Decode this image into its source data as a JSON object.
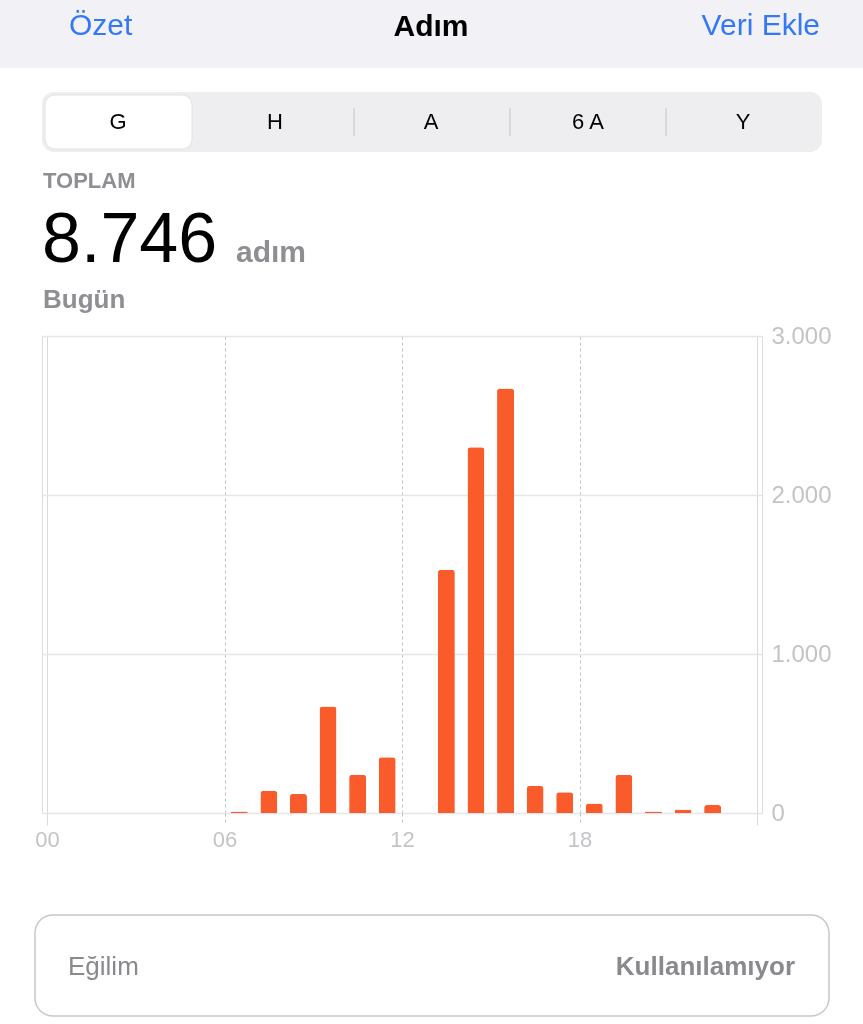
{
  "chart_data": {
    "type": "bar",
    "title": "Adım",
    "annotations": [
      "Özet",
      "Veri Ekle",
      "G",
      "H",
      "A",
      "6 A",
      "Y",
      "TOPLAM",
      "8.746",
      "adım",
      "Bugün",
      "Eğilim",
      "Kullanılamıyor"
    ],
    "x": [
      6.5,
      7.5,
      8.5,
      9.5,
      10.5,
      11.5,
      13.5,
      14.5,
      15.5,
      16.5,
      17.5,
      18.5,
      19.5,
      20.5,
      21.5,
      22.5
    ],
    "values": [
      10,
      140,
      120,
      670,
      240,
      350,
      1530,
      2300,
      2670,
      170,
      130,
      60,
      240,
      10,
      20,
      50
    ],
    "color": "#fa5b2a",
    "xlim": [
      0,
      24
    ],
    "xticks": [
      {
        "value": 0,
        "label": "00"
      },
      {
        "value": 6,
        "label": "06"
      },
      {
        "value": 12,
        "label": "12"
      },
      {
        "value": 18,
        "label": "18"
      },
      {
        "value": 24,
        "label": null
      }
    ],
    "ylim": [
      0,
      3000
    ],
    "yticks": [
      0,
      {
        "value": 1000,
        "label": "1.000"
      },
      {
        "value": 2000,
        "label": "2.000"
      },
      {
        "value": 3000,
        "label": "3.000"
      }
    ],
    "grid": true
  }
}
